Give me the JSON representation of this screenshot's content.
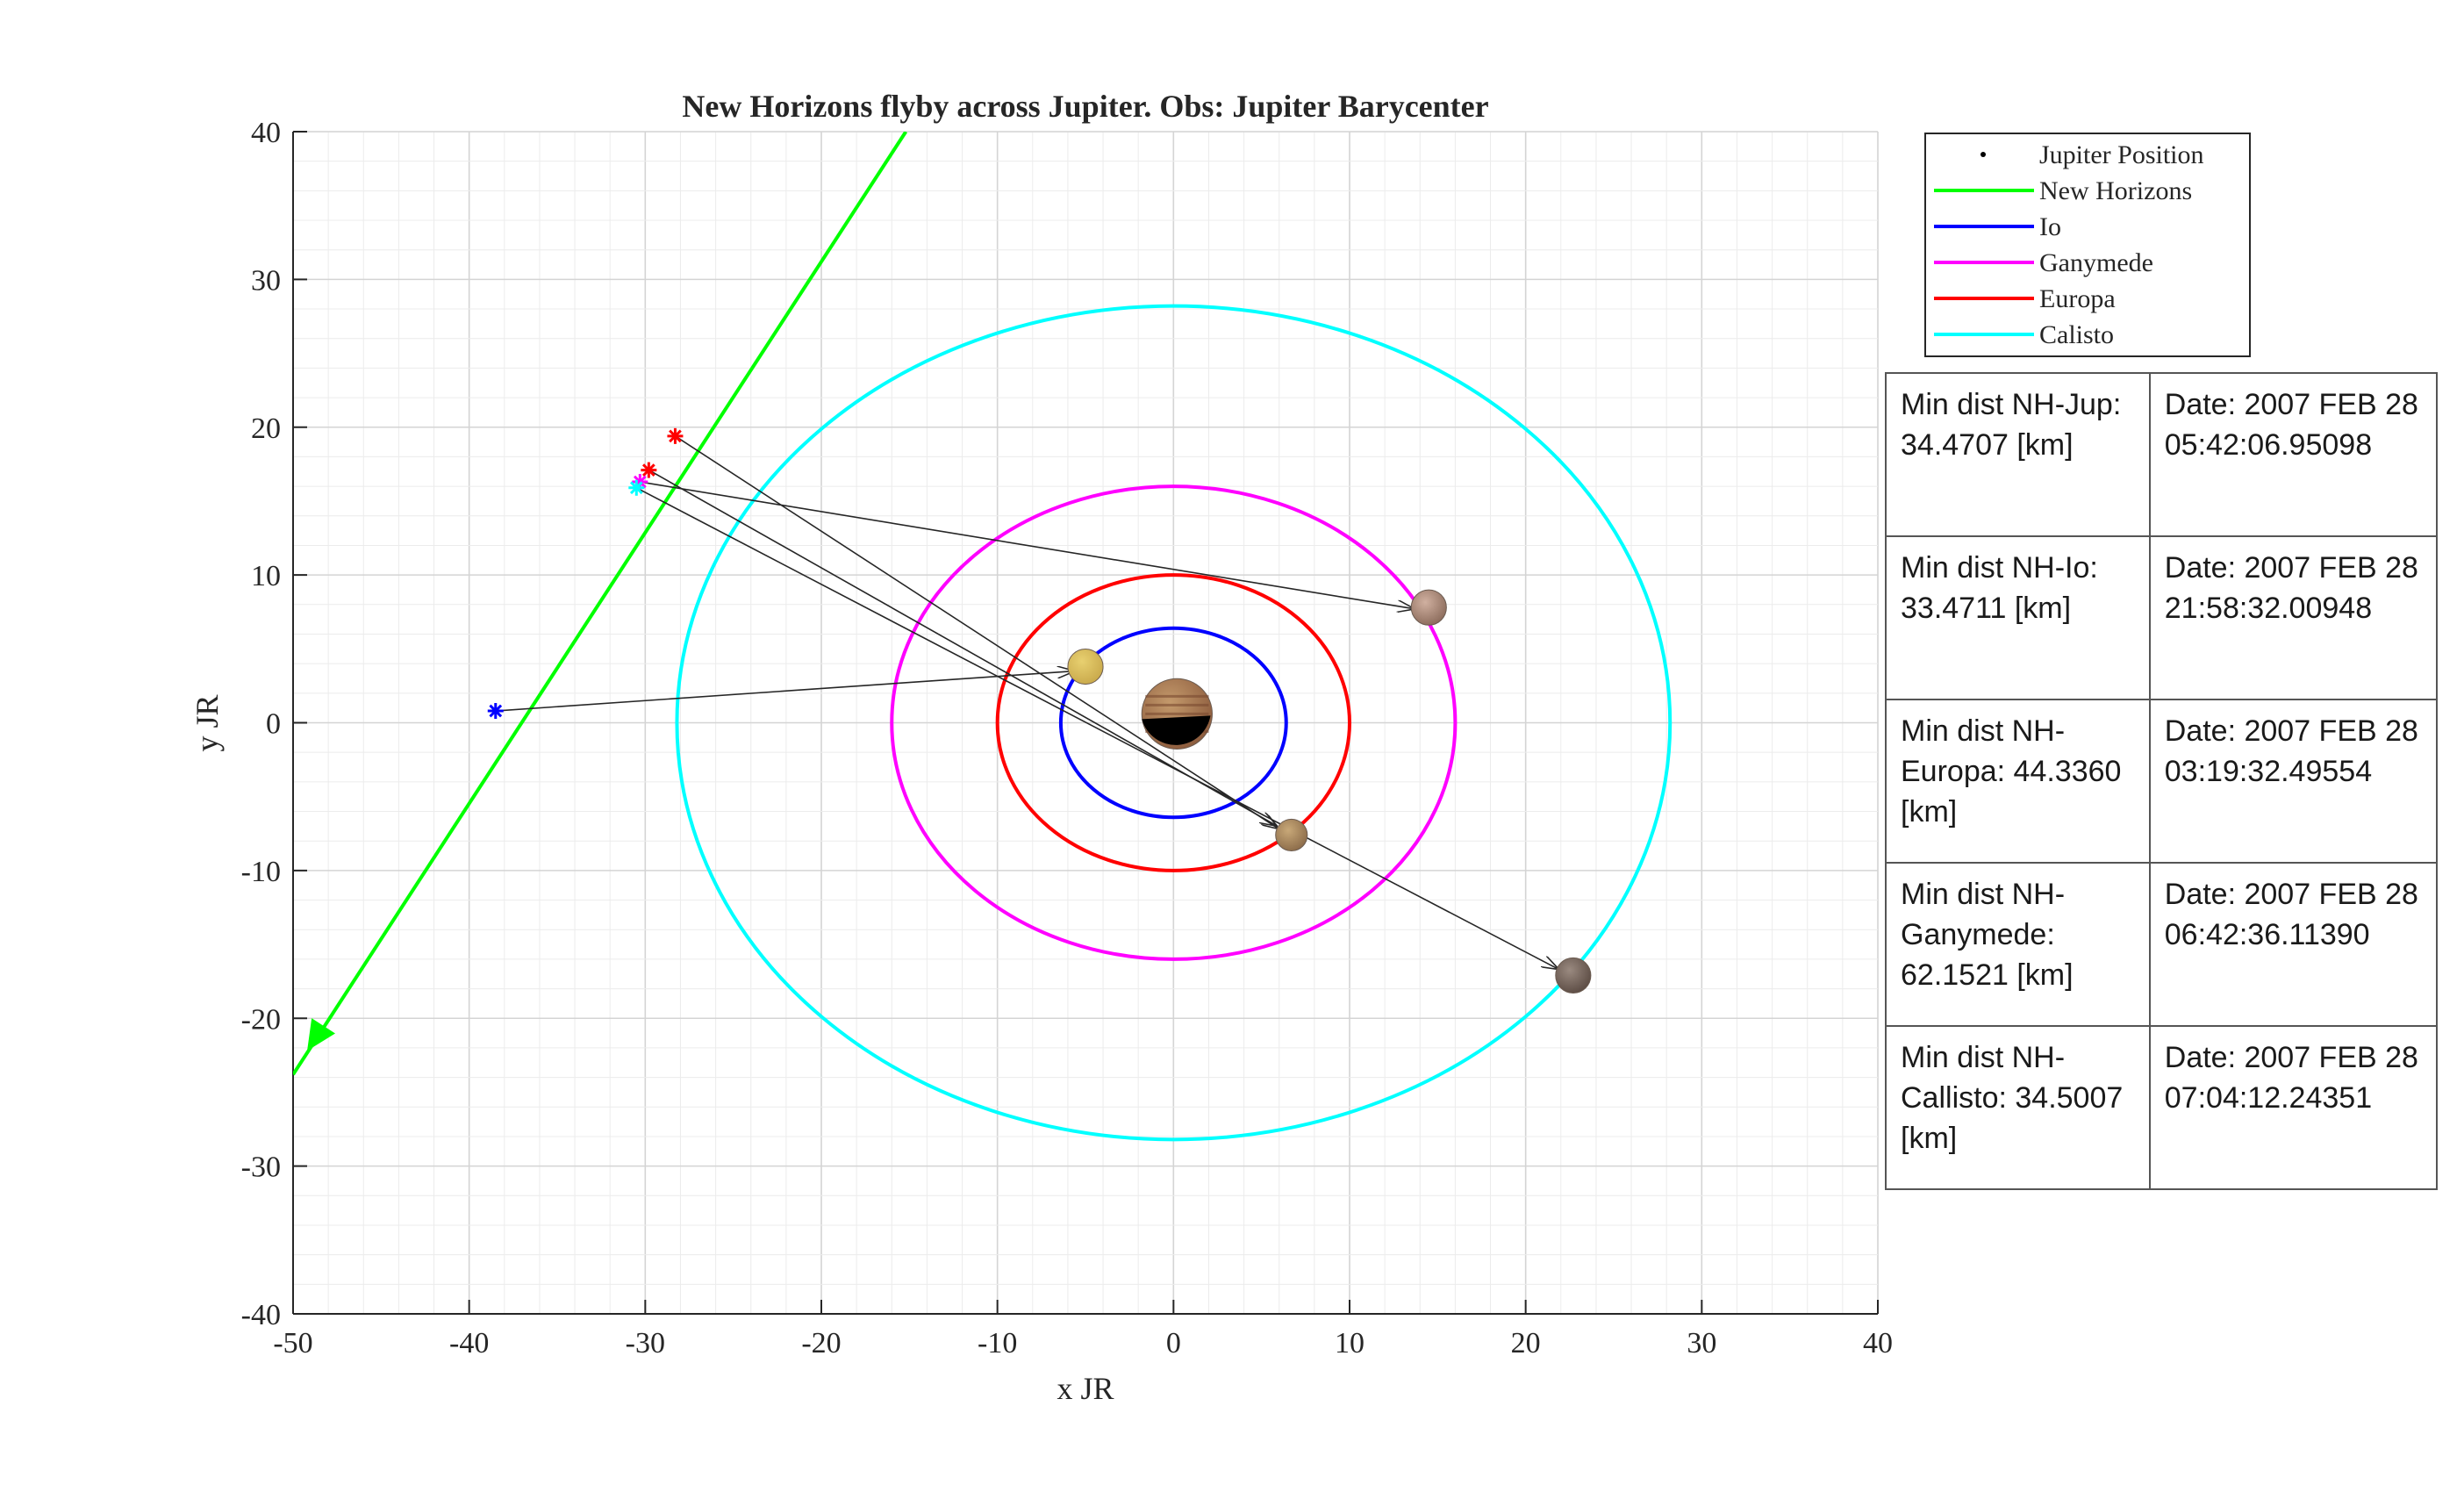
{
  "chart_data": {
    "type": "line",
    "title": "New Horizons flyby across Jupiter. Obs: Jupiter Barycenter",
    "xlabel": "x JR",
    "ylabel": "y JR",
    "xlim": [
      -50,
      40
    ],
    "ylim": [
      -40,
      40
    ],
    "x_ticks": [
      -50,
      -40,
      -30,
      -20,
      -10,
      0,
      10,
      20,
      30,
      40
    ],
    "y_ticks": [
      -40,
      -30,
      -20,
      -10,
      0,
      10,
      20,
      30,
      40
    ],
    "grid": "on (major and minor)",
    "legend_position": "top-right, outside plot",
    "legend": [
      {
        "label": "Jupiter Position",
        "style": "dot",
        "color": "#000000"
      },
      {
        "label": "New Horizons",
        "style": "line",
        "color": "#00ff00"
      },
      {
        "label": "Io",
        "style": "line",
        "color": "#0000ff"
      },
      {
        "label": "Ganymede",
        "style": "line",
        "color": "#ff00ff"
      },
      {
        "label": "Europa",
        "style": "line",
        "color": "#ff0000"
      },
      {
        "label": "Calisto",
        "style": "line",
        "color": "#00ffff"
      }
    ],
    "series": [
      {
        "name": "New Horizons",
        "color": "#00ff00",
        "type": "trajectory",
        "x": [
          -15.2,
          -50.0
        ],
        "y": [
          40.0,
          -23.8
        ],
        "arrow_at": [
          -49.2,
          -22.2
        ]
      },
      {
        "name": "Io",
        "color": "#0000ff",
        "type": "orbit",
        "center": [
          0,
          0
        ],
        "rx": 6.4,
        "ry": 6.4
      },
      {
        "name": "Ganymede",
        "color": "#ff00ff",
        "type": "orbit",
        "center": [
          0,
          0
        ],
        "rx": 16.0,
        "ry": 16.0
      },
      {
        "name": "Europa",
        "color": "#ff0000",
        "type": "orbit",
        "center": [
          0,
          0
        ],
        "rx": 10.0,
        "ry": 10.0
      },
      {
        "name": "Calisto",
        "color": "#00ffff",
        "type": "orbit",
        "center": [
          0,
          0
        ],
        "rx": 28.2,
        "ry": 28.2
      }
    ],
    "markers": [
      {
        "at": [
          -38.5,
          0.8
        ],
        "color": "#0000ff"
      },
      {
        "at": [
          -28.3,
          19.4
        ],
        "color": "#ff0000"
      },
      {
        "at": [
          -29.8,
          17.1
        ],
        "color": "#ff0000"
      },
      {
        "at": [
          -30.3,
          16.3
        ],
        "color": "#ff00ff"
      },
      {
        "at": [
          -30.5,
          15.9
        ],
        "color": "#00ffff"
      }
    ],
    "bodies": [
      {
        "name": "Jupiter",
        "at": [
          0.2,
          0.6
        ],
        "radius": 2.0,
        "colors": [
          "#8b5a3c",
          "#c49a6c"
        ]
      },
      {
        "name": "Io",
        "at": [
          -5.0,
          3.8
        ],
        "radius": 1.0,
        "colors": [
          "#c8a84a",
          "#e8d070"
        ]
      },
      {
        "name": "Europa",
        "at": [
          6.7,
          -7.6
        ],
        "radius": 0.9,
        "colors": [
          "#8a6a48",
          "#c8a878"
        ]
      },
      {
        "name": "Ganymede",
        "at": [
          14.5,
          7.8
        ],
        "radius": 1.0,
        "colors": [
          "#8a6a5a",
          "#d0b0a0"
        ]
      },
      {
        "name": "Callisto",
        "at": [
          22.7,
          -17.1
        ],
        "radius": 1.0,
        "colors": [
          "#5a4a42",
          "#9a8a80"
        ]
      }
    ],
    "arrows": [
      {
        "from": [
          -38.5,
          0.8
        ],
        "to": [
          -5.6,
          3.5
        ]
      },
      {
        "from": [
          -28.3,
          19.4
        ],
        "to": [
          6.0,
          -7.2
        ]
      },
      {
        "from": [
          -29.8,
          17.1
        ],
        "to": [
          5.9,
          -7.0
        ]
      },
      {
        "from": [
          -30.3,
          16.3
        ],
        "to": [
          13.7,
          7.7
        ]
      },
      {
        "from": [
          -30.5,
          15.9
        ],
        "to": [
          21.9,
          -16.7
        ]
      }
    ]
  },
  "table": [
    {
      "label": "Min dist NH-Jup: 34.4707 [km]",
      "date": "Date: 2007 FEB 28 05:42:06.95098"
    },
    {
      "label": "Min dist NH-Io: 33.4711 [km]",
      "date": "Date: 2007 FEB 28 21:58:32.00948"
    },
    {
      "label": "Min dist NH-Europa: 44.3360 [km]",
      "date": "Date: 2007 FEB 28 03:19:32.49554"
    },
    {
      "label": "Min dist NH-Ganymede: 62.1521 [km]",
      "date": "Date: 2007 FEB 28 06:42:36.11390"
    },
    {
      "label": "Min dist NH-Callisto: 34.5007 [km]",
      "date": "Date: 2007 FEB 28 07:04:12.24351"
    }
  ]
}
